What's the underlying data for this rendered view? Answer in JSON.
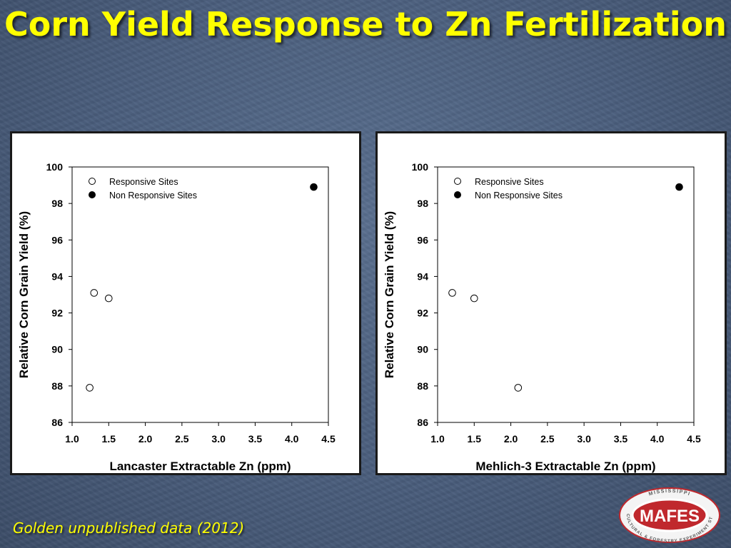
{
  "slide": {
    "title": "Corn Yield Response to Zn Fertilization",
    "footer": "Golden unpublished data (2012)",
    "title_color": "#ffff00",
    "logo": {
      "name": "MAFES",
      "top_text": "MISSISSIPPI",
      "bottom_text": "AGRICULTURAL & FORESTRY EXPERIMENT STATION",
      "color": "#c0282d"
    }
  },
  "chart_data": [
    {
      "type": "scatter",
      "xlabel": "Lancaster Extractable Zn (ppm)",
      "ylabel": "Relative Corn Grain Yield (%)",
      "xlim": [
        1.0,
        4.5
      ],
      "ylim": [
        86,
        100
      ],
      "xticks": [
        "1.0",
        "1.5",
        "2.0",
        "2.5",
        "3.0",
        "3.5",
        "4.0",
        "4.5"
      ],
      "yticks": [
        "86",
        "88",
        "90",
        "92",
        "94",
        "96",
        "98",
        "100"
      ],
      "grid": false,
      "legend_position": "top-left",
      "series": [
        {
          "name": "Responsive Sites",
          "marker": "open-circle",
          "points": [
            [
              1.3,
              93.1
            ],
            [
              1.5,
              92.8
            ],
            [
              1.24,
              87.9
            ]
          ]
        },
        {
          "name": "Non Responsive Sites",
          "marker": "filled-circle",
          "points": [
            [
              4.3,
              98.9
            ]
          ]
        }
      ]
    },
    {
      "type": "scatter",
      "xlabel": "Mehlich-3 Extractable Zn (ppm)",
      "ylabel": "Relative Corn Grain Yield (%)",
      "xlim": [
        1.0,
        4.5
      ],
      "ylim": [
        86,
        100
      ],
      "xticks": [
        "1.0",
        "1.5",
        "2.0",
        "2.5",
        "3.0",
        "3.5",
        "4.0",
        "4.5"
      ],
      "yticks": [
        "86",
        "88",
        "90",
        "92",
        "94",
        "96",
        "98",
        "100"
      ],
      "grid": false,
      "legend_position": "top-left",
      "series": [
        {
          "name": "Responsive Sites",
          "marker": "open-circle",
          "points": [
            [
              1.2,
              93.1
            ],
            [
              1.5,
              92.8
            ],
            [
              2.1,
              87.9
            ]
          ]
        },
        {
          "name": "Non Responsive Sites",
          "marker": "filled-circle",
          "points": [
            [
              4.3,
              98.9
            ]
          ]
        }
      ]
    }
  ]
}
